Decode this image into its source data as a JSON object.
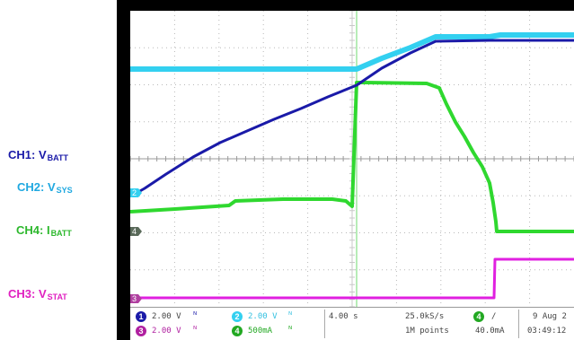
{
  "legend": [
    {
      "id": "ch1",
      "main": "CH1: V",
      "sub": "BATT",
      "color": "#1a1aa8"
    },
    {
      "id": "ch2",
      "main": "CH2: V",
      "sub": "SYS",
      "color": "#1fa8e0"
    },
    {
      "id": "ch4",
      "main": "CH4: I",
      "sub": "BATT",
      "color": "#2db82d"
    },
    {
      "id": "ch3",
      "main": "CH3: V",
      "sub": "STAT",
      "color": "#e020c0"
    }
  ],
  "markers": {
    "ch2": "2",
    "ch4": "4",
    "ch3": "3"
  },
  "status": {
    "ch1_num": "1",
    "ch1_scale": "2.00 V",
    "ch3_num": "3",
    "ch3_scale": "2.00 V",
    "ch2_num": "2",
    "ch2_scale": "2.00 V",
    "ch4_num": "4",
    "ch4_scale": "500mA",
    "coupling_symbol": "ᴺ",
    "timebase": "4.00 s",
    "sample_rate": "25.0kS/s",
    "record_length": "1M points",
    "trigger_num": "4",
    "trigger_slope": "/",
    "trigger_level": "40.0mA",
    "date": "9 Aug 2",
    "time": "03:49:12"
  },
  "colors": {
    "ch1": "#1a1aa8",
    "ch2": "#33d0f0",
    "ch4": "#2fd82f",
    "ch3": "#e020e0",
    "grid": "#b8b8b8"
  }
}
